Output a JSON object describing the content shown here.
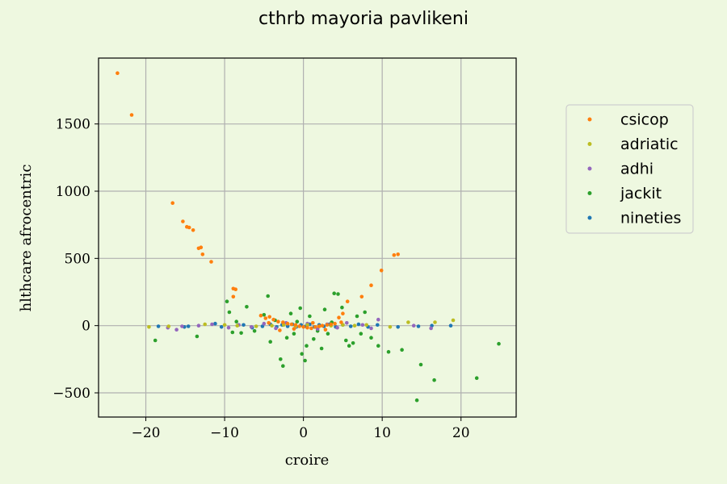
{
  "chart_data": {
    "type": "scatter",
    "title": "cthrb mayoria pavlikeni",
    "xlabel": "croire",
    "ylabel": "hlthcare afrocentric",
    "xlim": [
      -26,
      27
    ],
    "ylim": [
      -680,
      1990
    ],
    "xticks": [
      -20,
      -10,
      0,
      10,
      20
    ],
    "yticks": [
      -500,
      0,
      500,
      1000,
      1500
    ],
    "xtick_labels": [
      "−20",
      "−10",
      "0",
      "10",
      "20"
    ],
    "ytick_labels": [
      "−500",
      "0",
      "500",
      "1000",
      "1500"
    ],
    "grid": true,
    "legend_position": "right, outside plot",
    "series": [
      {
        "name": "csicop",
        "color": "#ff7f0e",
        "points": [
          [
            -23.6,
            1878
          ],
          [
            -21.8,
            1567
          ],
          [
            -16.6,
            912
          ],
          [
            -15.3,
            775
          ],
          [
            -14.8,
            735
          ],
          [
            -14.5,
            730
          ],
          [
            -14.0,
            710
          ],
          [
            -13.3,
            575
          ],
          [
            -13.0,
            582
          ],
          [
            -12.8,
            530
          ],
          [
            -11.7,
            475
          ],
          [
            -8.9,
            275
          ],
          [
            -8.6,
            270
          ],
          [
            -8.9,
            215
          ],
          [
            -5.4,
            75
          ],
          [
            -4.8,
            55
          ],
          [
            -4.3,
            65
          ],
          [
            -3.8,
            45
          ],
          [
            -3.2,
            30
          ],
          [
            -2.6,
            25
          ],
          [
            -2.0,
            15
          ],
          [
            -1.5,
            10
          ],
          [
            -1.0,
            5
          ],
          [
            -0.5,
            -5
          ],
          [
            0.0,
            -10
          ],
          [
            0.5,
            -15
          ],
          [
            1.0,
            -20
          ],
          [
            1.5,
            -10
          ],
          [
            2.0,
            -5
          ],
          [
            2.4,
            0
          ],
          [
            3.0,
            5
          ],
          [
            3.5,
            10
          ],
          [
            4.0,
            15
          ],
          [
            4.5,
            60
          ],
          [
            5.0,
            90
          ],
          [
            5.6,
            180
          ],
          [
            7.4,
            215
          ],
          [
            8.6,
            300
          ],
          [
            9.9,
            410
          ],
          [
            11.5,
            525
          ],
          [
            12.0,
            530
          ],
          [
            -3.0,
            -35
          ],
          [
            -1.2,
            -25
          ],
          [
            1.2,
            20
          ],
          [
            2.8,
            -30
          ],
          [
            -4.4,
            20
          ],
          [
            4.8,
            25
          ]
        ]
      },
      {
        "name": "adriatic",
        "color": "#bcbd22",
        "points": [
          [
            -19.6,
            -10
          ],
          [
            -17.1,
            -5
          ],
          [
            -12.5,
            10
          ],
          [
            -10.0,
            5
          ],
          [
            -8.4,
            0
          ],
          [
            -6.0,
            -5
          ],
          [
            -4.0,
            0
          ],
          [
            -2.5,
            5
          ],
          [
            -1.0,
            -5
          ],
          [
            0.5,
            5
          ],
          [
            2.0,
            -5
          ],
          [
            3.5,
            0
          ],
          [
            5.0,
            5
          ],
          [
            6.5,
            0
          ],
          [
            8.0,
            5
          ],
          [
            11.0,
            -10
          ],
          [
            13.3,
            25
          ],
          [
            16.7,
            25
          ],
          [
            19.0,
            40
          ]
        ]
      },
      {
        "name": "adhi",
        "color": "#9467bd",
        "points": [
          [
            -17.2,
            -15
          ],
          [
            -16.1,
            -30
          ],
          [
            -15.4,
            -5
          ],
          [
            -13.3,
            0
          ],
          [
            -11.6,
            10
          ],
          [
            -9.5,
            -15
          ],
          [
            -8.2,
            5
          ],
          [
            -6.6,
            -10
          ],
          [
            -5.0,
            15
          ],
          [
            -3.5,
            -20
          ],
          [
            -2.2,
            20
          ],
          [
            -1.0,
            -10
          ],
          [
            0.5,
            15
          ],
          [
            1.8,
            -25
          ],
          [
            3.0,
            10
          ],
          [
            4.3,
            -15
          ],
          [
            5.5,
            20
          ],
          [
            7.5,
            5
          ],
          [
            8.6,
            -20
          ],
          [
            9.5,
            45
          ],
          [
            14.0,
            0
          ],
          [
            16.2,
            -20
          ]
        ]
      },
      {
        "name": "jackit",
        "color": "#2ca02c",
        "points": [
          [
            -18.8,
            -110
          ],
          [
            -13.5,
            -80
          ],
          [
            -9.7,
            180
          ],
          [
            -9.4,
            100
          ],
          [
            -9.0,
            -50
          ],
          [
            -8.5,
            30
          ],
          [
            -7.9,
            -55
          ],
          [
            -7.2,
            140
          ],
          [
            -6.2,
            -40
          ],
          [
            -5.0,
            80
          ],
          [
            -4.5,
            220
          ],
          [
            -4.2,
            -120
          ],
          [
            -3.6,
            40
          ],
          [
            -2.9,
            -250
          ],
          [
            -2.6,
            -300
          ],
          [
            -2.1,
            -90
          ],
          [
            -1.6,
            90
          ],
          [
            -1.2,
            -60
          ],
          [
            -0.8,
            30
          ],
          [
            -0.4,
            130
          ],
          [
            -0.2,
            -210
          ],
          [
            0.2,
            -260
          ],
          [
            0.4,
            -150
          ],
          [
            0.8,
            70
          ],
          [
            1.3,
            -100
          ],
          [
            1.8,
            -40
          ],
          [
            2.3,
            -170
          ],
          [
            2.7,
            120
          ],
          [
            3.1,
            -60
          ],
          [
            3.6,
            25
          ],
          [
            3.9,
            240
          ],
          [
            4.4,
            235
          ],
          [
            4.9,
            135
          ],
          [
            5.4,
            -110
          ],
          [
            5.8,
            -150
          ],
          [
            6.3,
            -130
          ],
          [
            6.8,
            70
          ],
          [
            7.3,
            -60
          ],
          [
            7.8,
            100
          ],
          [
            8.6,
            -90
          ],
          [
            9.5,
            -150
          ],
          [
            10.8,
            -195
          ],
          [
            12.5,
            -180
          ],
          [
            14.4,
            -555
          ],
          [
            14.9,
            -290
          ],
          [
            16.6,
            -405
          ],
          [
            22.0,
            -390
          ],
          [
            24.8,
            -135
          ]
        ]
      },
      {
        "name": "nineties",
        "color": "#1f77b4",
        "points": [
          [
            -18.4,
            -5
          ],
          [
            -15.1,
            -10
          ],
          [
            -14.6,
            -5
          ],
          [
            -11.2,
            15
          ],
          [
            -10.4,
            -10
          ],
          [
            -7.6,
            5
          ],
          [
            -6.5,
            -15
          ],
          [
            -5.2,
            -5
          ],
          [
            -4.2,
            10
          ],
          [
            -3.4,
            -10
          ],
          [
            -2.7,
            5
          ],
          [
            -2.0,
            -5
          ],
          [
            -1.4,
            10
          ],
          [
            -0.9,
            -10
          ],
          [
            -0.3,
            5
          ],
          [
            0.3,
            -5
          ],
          [
            0.8,
            10
          ],
          [
            1.4,
            -10
          ],
          [
            2.0,
            5
          ],
          [
            2.6,
            -5
          ],
          [
            3.3,
            10
          ],
          [
            4.1,
            -10
          ],
          [
            5.0,
            5
          ],
          [
            6.0,
            -5
          ],
          [
            7.0,
            10
          ],
          [
            8.2,
            -10
          ],
          [
            9.4,
            5
          ],
          [
            12.0,
            -10
          ],
          [
            14.6,
            -5
          ],
          [
            16.3,
            0
          ],
          [
            18.7,
            0
          ]
        ]
      }
    ]
  }
}
